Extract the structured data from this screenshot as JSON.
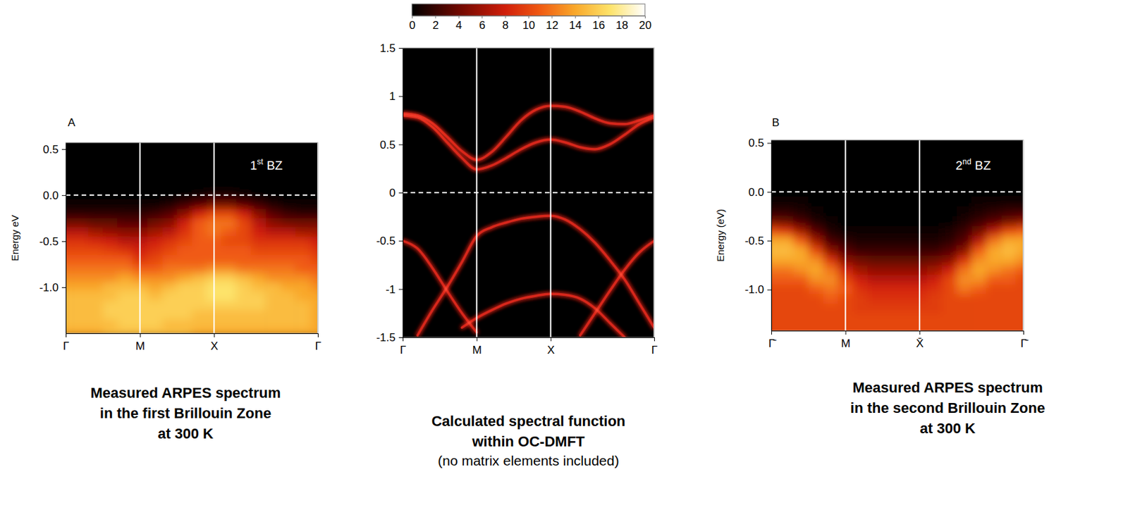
{
  "chart_data": [
    {
      "type": "heatmap",
      "panel_label": "A",
      "annotation": "1st BZ",
      "title": [
        "Measured ARPES spectrum",
        "in the first Brillouin Zone",
        "at 300 K"
      ],
      "y_label": "Energy eV",
      "x": [
        0,
        0.2,
        0.4,
        0.6,
        0.8,
        1,
        1.2,
        1.4,
        1.6,
        1.8,
        2,
        2.2,
        2.4,
        2.6,
        2.8,
        3,
        3.2,
        3.4
      ],
      "xlim": [
        0,
        3.4
      ],
      "xticks": [
        {
          "value": 0,
          "label": "Γ"
        },
        {
          "value": 1,
          "label": "M"
        },
        {
          "value": 2,
          "label": "X"
        },
        {
          "value": 3.4,
          "label": "Γ"
        }
      ],
      "y": [
        0.5,
        0.4,
        0.3,
        0.2,
        0.1,
        0,
        -0.1,
        -0.2,
        -0.3,
        -0.4,
        -0.5,
        -0.6,
        -0.7,
        -0.8,
        -0.9,
        -1,
        -1.1,
        -1.2,
        -1.3,
        -1.4,
        -1.5
      ],
      "ylim": [
        -1.5,
        0.57
      ],
      "yticks": [
        0.5,
        {
          "value": 0,
          "label": "0.0"
        },
        -0.5,
        {
          "value": -1,
          "label": "-1.0"
        }
      ],
      "reference_line": 0,
      "grid": "x",
      "color_range": [
        0,
        20
      ],
      "cells": [
        [
          0,
          0,
          0,
          0,
          0,
          0,
          0,
          0,
          0,
          0,
          0,
          0,
          0,
          0,
          0,
          0,
          0,
          0
        ],
        [
          0,
          0,
          0,
          0,
          0,
          0,
          0,
          0,
          0,
          0,
          0,
          0,
          0,
          0,
          0,
          0,
          0,
          0
        ],
        [
          0,
          0,
          0,
          0,
          0,
          0,
          0,
          0,
          0,
          0,
          0,
          0,
          0,
          0,
          0,
          0,
          0,
          0
        ],
        [
          0,
          0,
          0,
          0,
          0,
          0,
          0,
          0,
          0,
          0,
          0,
          0,
          0,
          0,
          0,
          0,
          0,
          0
        ],
        [
          0,
          0,
          0,
          0,
          0,
          0,
          0,
          0,
          0,
          0,
          0,
          0,
          0,
          0,
          0,
          0,
          0,
          0
        ],
        [
          0,
          0,
          0,
          0,
          0,
          0,
          0,
          0,
          0,
          0.5,
          1,
          1,
          0.5,
          0,
          0,
          0,
          0,
          0
        ],
        [
          0.5,
          0.5,
          0.5,
          0.5,
          0.5,
          0.5,
          0.5,
          1,
          2,
          3,
          4,
          4,
          3,
          2,
          1,
          0.5,
          0.5,
          0.5
        ],
        [
          1.5,
          1.5,
          1.5,
          1.5,
          1.5,
          1.5,
          2,
          3,
          5,
          8,
          10,
          10,
          8,
          5,
          3,
          2,
          1.5,
          1.5
        ],
        [
          4,
          4,
          3.5,
          3.5,
          3,
          3,
          4,
          5,
          8,
          11,
          12,
          12,
          10,
          7,
          5,
          4,
          4,
          4
        ],
        [
          7,
          7,
          6,
          5.5,
          5,
          5,
          6,
          7,
          9,
          11,
          12,
          11,
          10,
          8,
          7,
          7,
          6,
          6
        ],
        [
          9,
          9,
          8.5,
          8,
          7,
          7,
          8,
          9,
          10,
          11,
          11,
          10,
          10,
          9,
          9,
          9,
          9,
          8
        ],
        [
          10,
          10,
          10,
          9.5,
          9,
          8,
          9,
          10,
          11,
          11,
          11,
          11,
          11,
          10,
          10,
          10,
          10,
          9
        ],
        [
          11,
          11,
          11,
          11,
          11,
          9,
          10,
          11,
          11,
          11,
          11,
          11,
          11,
          11,
          11,
          11,
          11,
          10
        ],
        [
          12,
          12,
          12,
          12,
          12,
          11,
          11,
          12,
          12,
          12,
          13,
          13,
          12,
          12,
          12,
          12,
          11,
          11
        ],
        [
          13,
          13,
          13,
          13,
          14,
          13,
          13,
          13,
          14,
          15,
          16,
          16,
          15,
          14,
          13,
          13,
          13,
          12
        ],
        [
          14,
          14,
          14,
          15,
          15,
          15,
          14,
          15,
          16,
          16,
          17,
          17,
          16,
          15,
          15,
          14,
          14,
          13
        ],
        [
          15,
          15,
          15,
          15,
          16,
          16,
          15,
          16,
          16,
          16,
          17,
          17,
          16,
          16,
          15,
          15,
          14,
          14
        ],
        [
          15,
          15,
          15,
          16,
          16,
          16,
          16,
          16,
          16,
          16,
          16,
          16,
          16,
          16,
          15,
          15,
          15,
          14
        ],
        [
          15,
          15,
          15,
          16,
          16,
          16,
          16,
          16,
          16,
          15,
          15,
          15,
          15,
          15,
          15,
          15,
          15,
          14
        ],
        [
          15,
          15,
          15,
          15,
          16,
          16,
          16,
          15,
          15,
          15,
          15,
          15,
          15,
          15,
          15,
          15,
          15,
          14
        ],
        [
          14,
          14,
          14,
          15,
          15,
          15,
          15,
          15,
          15,
          14,
          14,
          14,
          14,
          14,
          14,
          14,
          14,
          14
        ]
      ]
    },
    {
      "type": "line",
      "title": [
        "Calculated spectral function",
        "within OC-DMFT"
      ],
      "subtitle": "(no matrix elements included)",
      "x": [
        0,
        0.2,
        0.4,
        0.6,
        0.8,
        1,
        1.2,
        1.4,
        1.6,
        1.8,
        2,
        2.2,
        2.4,
        2.6,
        2.8,
        3,
        3.2,
        3.4
      ],
      "xlim": [
        0,
        3.4
      ],
      "xticks": [
        {
          "value": 0,
          "label": "Γ"
        },
        {
          "value": 1,
          "label": "M"
        },
        {
          "value": 2,
          "label": "X"
        },
        {
          "value": 3.4,
          "label": "Γ"
        }
      ],
      "ylim": [
        -1.5,
        1.5
      ],
      "yticks": [
        1.5,
        1,
        0.5,
        0,
        -0.5,
        -1,
        -1.5
      ],
      "reference_line": 0,
      "grid": "x",
      "color": "#d8281a",
      "series": [
        {
          "values": [
            0.8,
            0.78,
            0.68,
            0.52,
            0.36,
            0.24,
            0.28,
            0.36,
            0.45,
            0.52,
            0.55,
            0.52,
            0.47,
            0.45,
            0.5,
            0.6,
            0.71,
            0.78
          ]
        },
        {
          "values": [
            0.82,
            0.8,
            0.72,
            0.58,
            0.43,
            0.34,
            0.42,
            0.58,
            0.75,
            0.86,
            0.9,
            0.89,
            0.84,
            0.77,
            0.72,
            0.71,
            0.75,
            0.8
          ]
        },
        {
          "values": [
            -0.5,
            -0.58,
            -0.78,
            -1.02,
            -1.25,
            -1.45,
            null,
            null,
            null,
            null,
            null,
            null,
            null,
            null,
            null,
            null,
            null,
            null
          ]
        },
        {
          "values": [
            null,
            -1.48,
            -1.22,
            -0.98,
            -0.72,
            -0.45,
            -0.36,
            -0.31,
            -0.27,
            -0.25,
            -0.24,
            -0.28,
            -0.38,
            -0.52,
            -0.7,
            -0.9,
            -1.15,
            -1.4
          ]
        },
        {
          "values": [
            null,
            null,
            null,
            null,
            null,
            null,
            null,
            null,
            null,
            null,
            null,
            null,
            -1.48,
            -1.25,
            -1.02,
            -0.8,
            -0.62,
            -0.5
          ]
        },
        {
          "values": [
            null,
            null,
            null,
            null,
            -1.4,
            -1.3,
            -1.22,
            -1.15,
            -1.1,
            -1.07,
            -1.05,
            -1.06,
            -1.1,
            -1.2,
            -1.35,
            -1.5,
            null,
            null
          ]
        }
      ],
      "colorbar": {
        "range": [
          0,
          20
        ],
        "ticks": [
          0,
          2,
          4,
          6,
          8,
          10,
          12,
          14,
          16,
          18,
          20
        ]
      }
    },
    {
      "type": "heatmap",
      "panel_label": "B",
      "annotation": "2nd BZ",
      "title": [
        "Measured ARPES spectrum",
        "in the second Brillouin Zone",
        "at 300 K"
      ],
      "y_label": "Energy (eV)",
      "x": [
        0,
        0.2,
        0.4,
        0.6,
        0.8,
        1,
        1.2,
        1.4,
        1.6,
        1.8,
        2,
        2.2,
        2.4,
        2.6,
        2.8,
        3,
        3.2,
        3.4
      ],
      "xlim": [
        0,
        3.4
      ],
      "xticks": [
        {
          "value": 0,
          "label": "Γ̄"
        },
        {
          "value": 1,
          "label": "M"
        },
        {
          "value": 2,
          "label": "X̄"
        },
        {
          "value": 3.4,
          "label": "Γ̄"
        }
      ],
      "y": [
        0.5,
        0.4,
        0.3,
        0.2,
        0.1,
        0,
        -0.1,
        -0.2,
        -0.3,
        -0.4,
        -0.5,
        -0.6,
        -0.7,
        -0.8,
        -0.9,
        -1,
        -1.1,
        -1.2,
        -1.3,
        -1.4,
        -1.5
      ],
      "ylim": [
        -1.42,
        0.53
      ],
      "yticks": [
        0.5,
        {
          "value": 0,
          "label": "0.0"
        },
        -0.5,
        {
          "value": -1,
          "label": "-1.0"
        }
      ],
      "reference_line": 0,
      "grid": "x",
      "color_range": [
        0,
        20
      ],
      "cells": [
        [
          0,
          0,
          0,
          0,
          0,
          0,
          0,
          0,
          0,
          0,
          0,
          0,
          0,
          0,
          0,
          0,
          0,
          0
        ],
        [
          0,
          0,
          0,
          0,
          0,
          0,
          0,
          0,
          0,
          0,
          0,
          0,
          0,
          0,
          0,
          0,
          0,
          0
        ],
        [
          0,
          0,
          0,
          0,
          0,
          0,
          0,
          0,
          0,
          0,
          0,
          0,
          0,
          0,
          0,
          0,
          0,
          0
        ],
        [
          0,
          0,
          0,
          0,
          0,
          0,
          0,
          0,
          0,
          0,
          0,
          0,
          0,
          0,
          0,
          0,
          0,
          0
        ],
        [
          0,
          0,
          0,
          0,
          0,
          0,
          0,
          0,
          0,
          0,
          0,
          0,
          0,
          0,
          0,
          0,
          0,
          0
        ],
        [
          0,
          0,
          0,
          0,
          0,
          0,
          0,
          0,
          0,
          0,
          0,
          0,
          0,
          0,
          0,
          0,
          0,
          0
        ],
        [
          0.5,
          0.5,
          0.5,
          0,
          0,
          0,
          0,
          0,
          0,
          0,
          0,
          0,
          0,
          0,
          0.5,
          0.5,
          0.5,
          0.5
        ],
        [
          1.5,
          1.5,
          1,
          0.5,
          0,
          0,
          0,
          0,
          0,
          0,
          0,
          0,
          0,
          0.5,
          1,
          1.5,
          2,
          2
        ],
        [
          4,
          3.5,
          2.5,
          1,
          0.5,
          0,
          0,
          0,
          0,
          0,
          0,
          0,
          0,
          1,
          2,
          3,
          4,
          5
        ],
        [
          10,
          9,
          6,
          3,
          1,
          0.5,
          0.5,
          0.5,
          0.5,
          0.5,
          0.5,
          0.5,
          1,
          2,
          4,
          7,
          10,
          11
        ],
        [
          14,
          14,
          11,
          6,
          2.5,
          1.5,
          1,
          1,
          1,
          1,
          1,
          1,
          1.5,
          3,
          7,
          12,
          14,
          14
        ],
        [
          15,
          15,
          14,
          10,
          5,
          3,
          2,
          2,
          2,
          2,
          2,
          2,
          3,
          5,
          11,
          14,
          15,
          14
        ],
        [
          14,
          14,
          14,
          13,
          9,
          5,
          4,
          3.5,
          3.5,
          3.5,
          3.5,
          4,
          5,
          9,
          13,
          14,
          14,
          13
        ],
        [
          12,
          12,
          13,
          14,
          12,
          8,
          6,
          5.5,
          5.5,
          5.5,
          5.5,
          6,
          8,
          12,
          14,
          13,
          12,
          11
        ],
        [
          11,
          11,
          11,
          13,
          13,
          10,
          8,
          7,
          7,
          7,
          7,
          8,
          10,
          13,
          13,
          11,
          11,
          10
        ],
        [
          10,
          10,
          10,
          11,
          12,
          11,
          9,
          8.5,
          8.5,
          8.5,
          8.5,
          9,
          10,
          12,
          11,
          10,
          10,
          10
        ],
        [
          10,
          10,
          10,
          10,
          11,
          10,
          9.5,
          9,
          9,
          9,
          9,
          9.5,
          10,
          10,
          10,
          10,
          10,
          10
        ],
        [
          10,
          10,
          10,
          10,
          10,
          10,
          9.5,
          9.5,
          9.5,
          9.5,
          9.5,
          9.5,
          10,
          10,
          10,
          10,
          10,
          10
        ],
        [
          10,
          10,
          10,
          10,
          10,
          10,
          10,
          10,
          10,
          10,
          10,
          10,
          10,
          10,
          10,
          10,
          10,
          10
        ],
        [
          10,
          10,
          10,
          10,
          10,
          10,
          10,
          10,
          10,
          10,
          10,
          10,
          10,
          10,
          10,
          10,
          10,
          10
        ],
        [
          10,
          10,
          10,
          10,
          10,
          10,
          10,
          10,
          10,
          10,
          10,
          10,
          10,
          10,
          10,
          10,
          10,
          10
        ]
      ]
    }
  ]
}
